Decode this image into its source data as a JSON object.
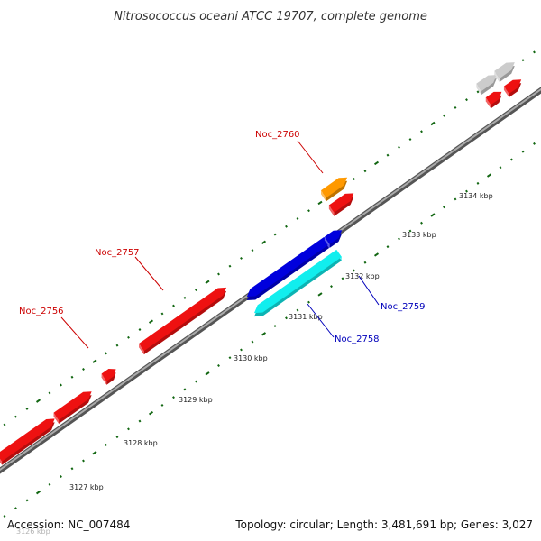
{
  "title": "Nitrosococcus oceani ATCC 19707, complete genome",
  "footer": {
    "accession": "Accession: NC_007484",
    "summary": "Topology: circular; Length: 3,481,691 bp; Genes: 3,027"
  },
  "axis": {
    "unit": "kbp",
    "tick_labels": [
      "3126 kbp",
      "3127 kbp",
      "3128 kbp",
      "3129 kbp",
      "3130 kbp",
      "3131 kbp",
      "3132 kbp",
      "3133 kbp",
      "3134 kbp"
    ]
  },
  "gene_labels": [
    {
      "text": "Noc_2756",
      "color": "#cc0000"
    },
    {
      "text": "Noc_2757",
      "color": "#cc0000"
    },
    {
      "text": "Noc_2760",
      "color": "#cc0000"
    },
    {
      "text": "Noc_2759",
      "color": "#0000bb"
    },
    {
      "text": "Noc_2758",
      "color": "#0000bb"
    }
  ],
  "colors": {
    "forward_gene": "#ee1111",
    "reverse_gene": "#0000dd",
    "cyan_gene": "#11eeee",
    "orange_gene": "#ff9900",
    "grey_gene": "#cccccc",
    "backbone": "#777777",
    "tick": "#116611"
  }
}
